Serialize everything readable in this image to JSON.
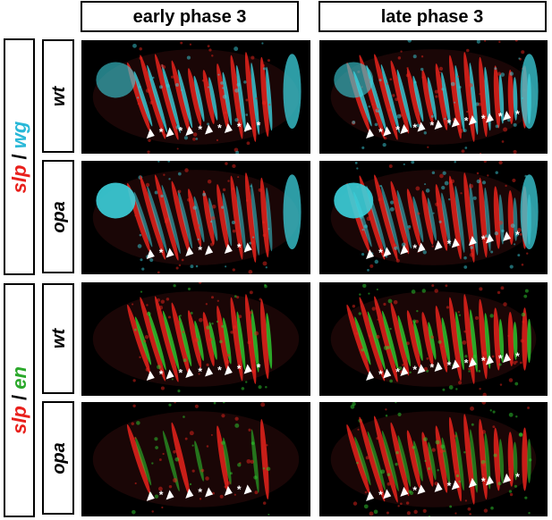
{
  "column_headers": [
    "early phase 3",
    "late phase 3"
  ],
  "groups": [
    {
      "label_parts": [
        "slp",
        "/",
        "wg"
      ],
      "rows": [
        "wt",
        "opa"
      ]
    },
    {
      "label_parts": [
        "slp",
        "/",
        "en"
      ],
      "rows": [
        "wt",
        "opa"
      ]
    }
  ],
  "annotation_symbol": "*"
}
